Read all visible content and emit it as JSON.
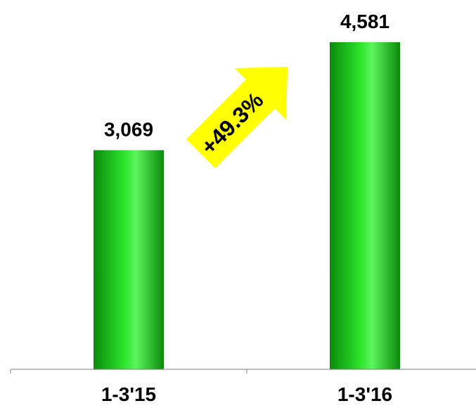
{
  "chart_data": {
    "type": "bar",
    "categories": [
      "1-3'15",
      "1-3'16"
    ],
    "values": [
      3069,
      4581
    ],
    "data_labels": [
      "3,069",
      "4,581"
    ],
    "annotation": "+49.3%",
    "ylim": [
      0,
      4581
    ],
    "grid": false,
    "colors": {
      "bar_dark": "#0a8a0a",
      "bar_mid": "#2ee62e",
      "bar_light": "#8cff8c",
      "arrow": "#ffff00",
      "axis": "#808080"
    }
  }
}
